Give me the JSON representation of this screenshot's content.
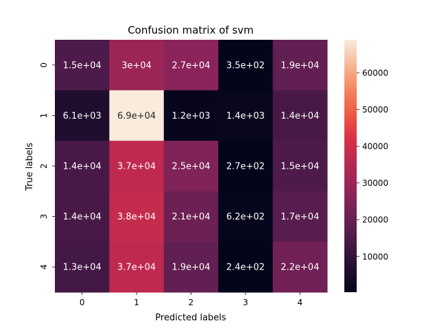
{
  "chart_data": {
    "type": "heatmap",
    "title": "Confusion matrix of svm",
    "xlabel": "Predicted labels",
    "ylabel": "True labels",
    "x_categories": [
      "0",
      "1",
      "2",
      "3",
      "4"
    ],
    "y_categories": [
      "0",
      "1",
      "2",
      "3",
      "4"
    ],
    "values": [
      [
        15000,
        30000,
        27000,
        350,
        19000
      ],
      [
        6100,
        69000,
        1200,
        1400,
        14000
      ],
      [
        14000,
        37000,
        25000,
        270,
        15000
      ],
      [
        14000,
        38000,
        21000,
        620,
        17000
      ],
      [
        13000,
        37000,
        19000,
        240,
        22000
      ]
    ],
    "cell_labels": [
      [
        "1.5e+04",
        "3e+04",
        "2.7e+04",
        "3.5e+02",
        "1.9e+04"
      ],
      [
        "6.1e+03",
        "6.9e+04",
        "1.2e+03",
        "1.4e+03",
        "1.4e+04"
      ],
      [
        "1.4e+04",
        "3.7e+04",
        "2.5e+04",
        "2.7e+02",
        "1.5e+04"
      ],
      [
        "1.4e+04",
        "3.8e+04",
        "2.1e+04",
        "6.2e+02",
        "1.7e+04"
      ],
      [
        "1.3e+04",
        "3.7e+04",
        "1.9e+04",
        "2.4e+02",
        "2.2e+04"
      ]
    ],
    "colorscale": "rocket",
    "color_range": [
      240,
      69000
    ],
    "colorbar_ticks": [
      10000,
      20000,
      30000,
      40000,
      50000,
      60000
    ],
    "colorbar_tick_labels": [
      "10000",
      "20000",
      "30000",
      "40000",
      "50000",
      "60000"
    ],
    "grid": false
  }
}
